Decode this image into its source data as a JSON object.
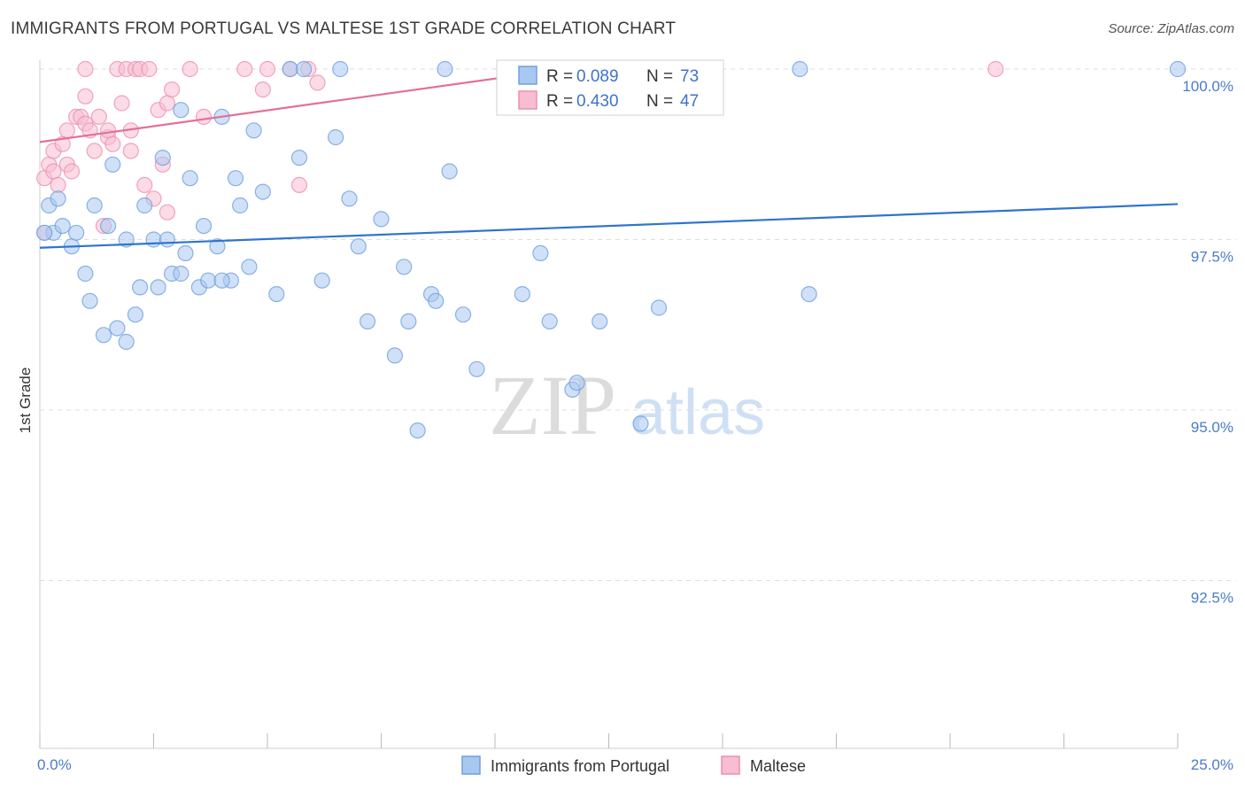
{
  "header": {
    "title": "IMMIGRANTS FROM PORTUGAL VS MALTESE 1ST GRADE CORRELATION CHART",
    "source": "Source: ZipAtlas.com"
  },
  "watermark": {
    "zip": "ZIP",
    "atlas": "atlas"
  },
  "colors": {
    "blue_fill": "#a9c8f0",
    "blue_stroke": "#6f9fe0",
    "blue_line": "#2f74d0",
    "pink_fill": "#f7bdd0",
    "pink_stroke": "#ee8fb0",
    "pink_line": "#e46f98",
    "grid": "#dddddd",
    "axis_text": "#4a7cc9"
  },
  "stats_box": {
    "rows": [
      {
        "r_label": "R =",
        "r_value": "0.089",
        "n_label": "N =",
        "n_value": "73"
      },
      {
        "r_label": "R =",
        "r_value": "0.430",
        "n_label": "N =",
        "n_value": "47"
      }
    ]
  },
  "legend": {
    "items": [
      {
        "label": "Immigrants from Portugal"
      },
      {
        "label": "Maltese"
      }
    ]
  },
  "chart_data": {
    "type": "scatter",
    "title": "IMMIGRANTS FROM PORTUGAL VS MALTESE 1ST GRADE CORRELATION CHART",
    "xlabel": "",
    "ylabel": "1st Grade",
    "xlim": [
      0,
      25
    ],
    "ylim": [
      90.3,
      100.2
    ],
    "x_tick_labels": [
      "0.0%",
      "25.0%"
    ],
    "y_ticks": [
      100.0,
      97.5,
      95.0,
      92.5
    ],
    "y_tick_labels": [
      "100.0%",
      "97.5%",
      "95.0%",
      "92.5%"
    ],
    "grid": true,
    "legend_position": "bottom-center",
    "series": [
      {
        "name": "Immigrants from Portugal",
        "color": "#a9c8f0",
        "trend": {
          "x": [
            0,
            25
          ],
          "y": [
            97.38,
            98.02
          ]
        },
        "points": [
          [
            0.2,
            98.0
          ],
          [
            0.3,
            97.6
          ],
          [
            0.4,
            98.1
          ],
          [
            0.5,
            97.7
          ],
          [
            0.7,
            97.4
          ],
          [
            0.8,
            97.6
          ],
          [
            1.0,
            97.0
          ],
          [
            1.1,
            96.6
          ],
          [
            1.2,
            98.0
          ],
          [
            1.4,
            96.1
          ],
          [
            1.5,
            97.7
          ],
          [
            1.6,
            98.6
          ],
          [
            1.7,
            96.2
          ],
          [
            1.9,
            97.5
          ],
          [
            1.9,
            96.0
          ],
          [
            2.1,
            96.4
          ],
          [
            2.2,
            96.8
          ],
          [
            2.3,
            98.0
          ],
          [
            2.5,
            97.5
          ],
          [
            2.6,
            96.8
          ],
          [
            2.7,
            98.7
          ],
          [
            2.8,
            97.5
          ],
          [
            2.9,
            97.0
          ],
          [
            3.1,
            97.0
          ],
          [
            3.2,
            97.3
          ],
          [
            3.3,
            98.4
          ],
          [
            3.5,
            96.8
          ],
          [
            3.6,
            97.7
          ],
          [
            3.7,
            96.9
          ],
          [
            3.9,
            97.4
          ],
          [
            4.0,
            99.3
          ],
          [
            4.2,
            96.9
          ],
          [
            4.3,
            98.4
          ],
          [
            4.4,
            98.0
          ],
          [
            4.6,
            97.1
          ],
          [
            4.7,
            99.1
          ],
          [
            4.9,
            98.2
          ],
          [
            5.2,
            96.7
          ],
          [
            5.5,
            100.0
          ],
          [
            5.7,
            98.7
          ],
          [
            5.8,
            100.0
          ],
          [
            6.2,
            96.9
          ],
          [
            6.5,
            99.0
          ],
          [
            6.6,
            100.0
          ],
          [
            6.8,
            98.1
          ],
          [
            7.0,
            97.4
          ],
          [
            7.2,
            96.3
          ],
          [
            7.5,
            97.8
          ],
          [
            7.8,
            95.8
          ],
          [
            8.0,
            97.1
          ],
          [
            8.1,
            96.3
          ],
          [
            8.3,
            94.7
          ],
          [
            8.6,
            96.7
          ],
          [
            8.7,
            96.6
          ],
          [
            8.9,
            100.0
          ],
          [
            9.0,
            98.5
          ],
          [
            9.3,
            96.4
          ],
          [
            9.6,
            95.6
          ],
          [
            10.6,
            96.7
          ],
          [
            11.0,
            97.3
          ],
          [
            11.2,
            96.3
          ],
          [
            11.7,
            95.3
          ],
          [
            11.8,
            95.4
          ],
          [
            12.3,
            96.3
          ],
          [
            13.2,
            94.8
          ],
          [
            13.6,
            96.5
          ],
          [
            13.9,
            100.0
          ],
          [
            16.9,
            96.7
          ],
          [
            16.7,
            100.0
          ],
          [
            25.0,
            100.0
          ],
          [
            4.0,
            96.9
          ],
          [
            3.1,
            99.4
          ],
          [
            0.1,
            97.6
          ]
        ]
      },
      {
        "name": "Maltese",
        "color": "#f7bdd0",
        "trend": {
          "x": [
            0,
            11.5
          ],
          "y": [
            98.93,
            100.0
          ]
        },
        "points": [
          [
            0.1,
            98.4
          ],
          [
            0.2,
            98.6
          ],
          [
            0.3,
            98.8
          ],
          [
            0.3,
            98.5
          ],
          [
            0.4,
            98.3
          ],
          [
            0.5,
            98.9
          ],
          [
            0.6,
            98.6
          ],
          [
            0.6,
            99.1
          ],
          [
            0.7,
            98.5
          ],
          [
            0.8,
            99.3
          ],
          [
            0.9,
            99.3
          ],
          [
            1.0,
            99.2
          ],
          [
            1.0,
            99.6
          ],
          [
            1.1,
            99.1
          ],
          [
            1.2,
            98.8
          ],
          [
            1.3,
            99.3
          ],
          [
            1.4,
            97.7
          ],
          [
            1.5,
            99.0
          ],
          [
            1.5,
            99.1
          ],
          [
            1.6,
            98.9
          ],
          [
            1.7,
            100.0
          ],
          [
            1.8,
            99.5
          ],
          [
            1.9,
            100.0
          ],
          [
            2.0,
            98.8
          ],
          [
            2.0,
            99.1
          ],
          [
            2.1,
            100.0
          ],
          [
            2.2,
            100.0
          ],
          [
            2.3,
            98.3
          ],
          [
            2.4,
            100.0
          ],
          [
            2.5,
            98.1
          ],
          [
            2.6,
            99.4
          ],
          [
            2.7,
            98.6
          ],
          [
            2.8,
            97.9
          ],
          [
            2.8,
            99.5
          ],
          [
            2.9,
            99.7
          ],
          [
            3.3,
            100.0
          ],
          [
            3.6,
            99.3
          ],
          [
            4.5,
            100.0
          ],
          [
            4.9,
            99.7
          ],
          [
            5.0,
            100.0
          ],
          [
            5.5,
            100.0
          ],
          [
            5.7,
            98.3
          ],
          [
            5.9,
            100.0
          ],
          [
            6.1,
            99.8
          ],
          [
            21.0,
            100.0
          ],
          [
            1.0,
            100.0
          ],
          [
            0.1,
            97.6
          ]
        ]
      }
    ]
  }
}
